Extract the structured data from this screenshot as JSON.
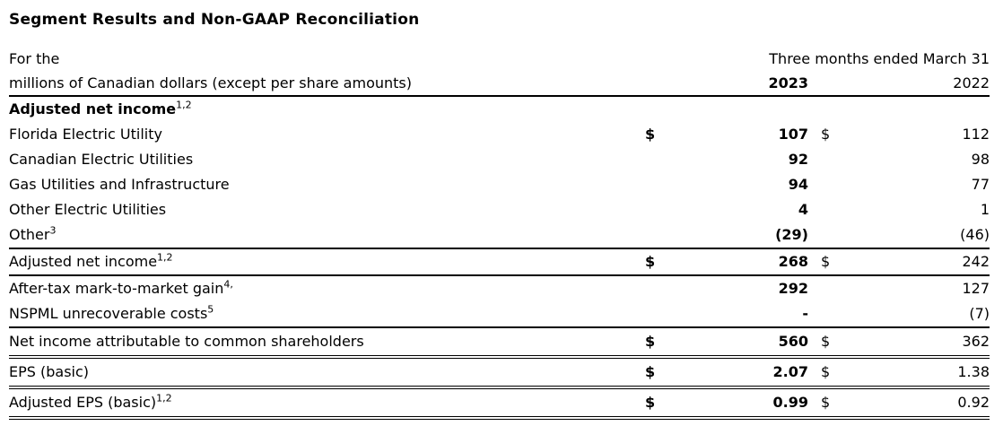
{
  "title": "Segment Results and Non-GAAP Reconciliation",
  "table": {
    "header": {
      "for_the": "For the",
      "units": "millions of Canadian dollars (except per share amounts)",
      "period": "Three months ended March 31",
      "year_current": "2023",
      "year_prior": "2022"
    },
    "rows": [
      {
        "label": "Adjusted net income",
        "sup": "1,2"
      },
      {
        "label": "Florida Electric Utility",
        "cur2023": "$",
        "v2023": "107",
        "cur2022": "$",
        "v2022": "112"
      },
      {
        "label": "Canadian Electric Utilities",
        "v2023": "92",
        "v2022": "98"
      },
      {
        "label": "Gas Utilities and Infrastructure",
        "v2023": "94",
        "v2022": "77"
      },
      {
        "label": "Other Electric Utilities",
        "v2023": "4",
        "v2022": "1"
      },
      {
        "label": "Other",
        "sup": "3",
        "v2023": "(29)",
        "v2022": "(46)"
      },
      {
        "label": "Adjusted net income",
        "sup": "1,2",
        "cur2023": "$",
        "v2023": "268",
        "cur2022": "$",
        "v2022": "242"
      },
      {
        "label": "After-tax mark-to-market gain",
        "sup": "4,",
        "v2023": "292",
        "v2022": "127"
      },
      {
        "label": "NSPML unrecoverable costs",
        "sup": "5",
        "v2023": "-",
        "v2022": "(7)"
      },
      {
        "label": "Net income attributable to common shareholders",
        "cur2023": "$",
        "v2023": "560",
        "cur2022": "$",
        "v2022": "362"
      },
      {
        "label": "EPS (basic)",
        "cur2023": "$",
        "v2023": "2.07",
        "cur2022": "$",
        "v2022": "1.38"
      },
      {
        "label": "Adjusted EPS (basic)",
        "sup": "1,2",
        "cur2023": "$",
        "v2023": "0.99",
        "cur2022": "$",
        "v2022": "0.92"
      }
    ]
  }
}
